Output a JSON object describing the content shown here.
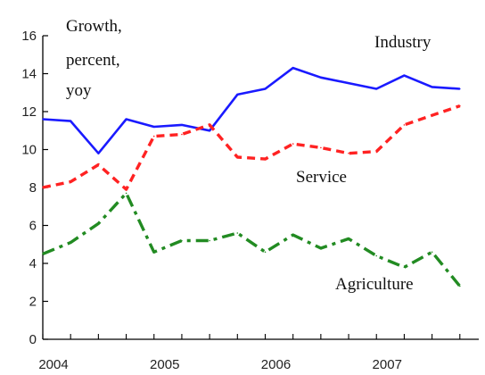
{
  "chart_data": {
    "type": "line",
    "title": "",
    "ylabel_lines": [
      "Growth,",
      "percent,",
      "yoy"
    ],
    "xlabel": "",
    "ylim": [
      0,
      16
    ],
    "yticks": [
      0,
      2,
      4,
      6,
      8,
      10,
      12,
      14,
      16
    ],
    "xlim": [
      2004.0,
      2007.92
    ],
    "xticks": [
      {
        "value": 2004.0,
        "label": "2004"
      },
      {
        "value": 2005.0,
        "label": "2005"
      },
      {
        "value": 2006.0,
        "label": "2006"
      },
      {
        "value": 2007.0,
        "label": "2007"
      }
    ],
    "series": [
      {
        "name": "Industry",
        "color": "#1a1aff",
        "style": "solid",
        "x": [
          2004.0,
          2004.25,
          2004.5,
          2004.75,
          2005.0,
          2005.25,
          2005.5,
          2005.75,
          2006.0,
          2006.25,
          2006.5,
          2006.75,
          2007.0,
          2007.25,
          2007.5,
          2007.75
        ],
        "values": [
          11.6,
          11.5,
          9.8,
          11.6,
          11.2,
          11.3,
          11.0,
          12.9,
          13.2,
          14.3,
          13.8,
          13.5,
          13.2,
          13.9,
          13.3,
          13.2
        ]
      },
      {
        "name": "Service",
        "color": "#ff2222",
        "style": "dotted",
        "x": [
          2004.0,
          2004.25,
          2004.5,
          2004.75,
          2005.0,
          2005.25,
          2005.5,
          2005.75,
          2006.0,
          2006.25,
          2006.5,
          2006.75,
          2007.0,
          2007.25,
          2007.5,
          2007.75
        ],
        "values": [
          8.0,
          8.3,
          9.2,
          7.9,
          10.7,
          10.8,
          11.3,
          9.6,
          9.5,
          10.3,
          10.1,
          9.8,
          9.9,
          11.3,
          11.8,
          12.3
        ]
      },
      {
        "name": "Agriculture",
        "color": "#228b22",
        "style": "dashdot",
        "x": [
          2004.0,
          2004.25,
          2004.5,
          2004.75,
          2005.0,
          2005.25,
          2005.5,
          2005.75,
          2006.0,
          2006.25,
          2006.5,
          2006.75,
          2007.0,
          2007.25,
          2007.5,
          2007.75
        ],
        "values": [
          4.5,
          5.1,
          6.1,
          7.7,
          4.6,
          5.2,
          5.2,
          5.6,
          4.6,
          5.5,
          4.8,
          5.3,
          4.4,
          3.8,
          4.6,
          2.8
        ]
      }
    ],
    "annotations": [
      "Industry",
      "Service",
      "Agriculture"
    ],
    "grid": false,
    "legend": "none"
  }
}
